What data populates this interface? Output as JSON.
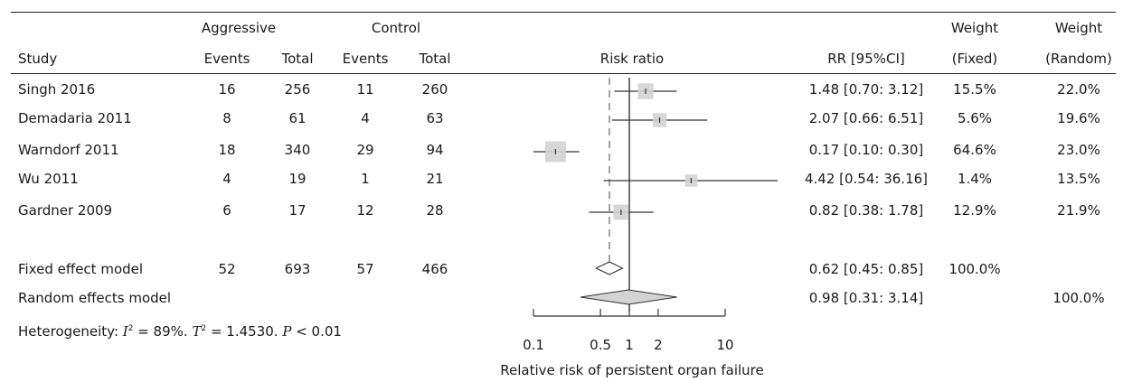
{
  "header": {
    "group1": "Aggressive",
    "group2": "Control",
    "col_study": "Study",
    "col_events1": "Events",
    "col_total1": "Total",
    "col_events2": "Events",
    "col_total2": "Total",
    "col_plot": "Risk ratio",
    "col_rr": "RR [95%CI]",
    "col_weight_top1": "Weight",
    "col_weight_top2": "Weight",
    "col_weight_fixed": "(Fixed)",
    "col_weight_random": "(Random)"
  },
  "studies": [
    {
      "name": "Singh 2016",
      "e1": "16",
      "t1": "256",
      "e2": "11",
      "t2": "260",
      "rr_text": "1.48 [0.70: 3.12]",
      "wf": "15.5%",
      "wr": "22.0%"
    },
    {
      "name": "Demadaria 2011",
      "e1": "8",
      "t1": "61",
      "e2": "4",
      "t2": "63",
      "rr_text": "2.07 [0.66: 6.51]",
      "wf": "5.6%",
      "wr": "19.6%"
    },
    {
      "name": "Warndorf 2011",
      "e1": "18",
      "t1": "340",
      "e2": "29",
      "t2": "94",
      "rr_text": "0.17 [0.10: 0.30]",
      "wf": "64.6%",
      "wr": "23.0%"
    },
    {
      "name": "Wu 2011",
      "e1": "4",
      "t1": "19",
      "e2": "1",
      "t2": "21",
      "rr_text": "4.42 [0.54: 36.16]",
      "wf": "1.4%",
      "wr": "13.5%"
    },
    {
      "name": "Gardner 2009",
      "e1": "6",
      "t1": "17",
      "e2": "12",
      "t2": "28",
      "rr_text": "0.82 [0.38: 1.78]",
      "wf": "12.9%",
      "wr": "21.9%"
    }
  ],
  "fixed": {
    "name": "Fixed effect model",
    "e1": "52",
    "t1": "693",
    "e2": "57",
    "t2": "466",
    "rr_text": "0.62 [0.45: 0.85]",
    "wf": "100.0%"
  },
  "random": {
    "name": "Random effects model",
    "rr_text": "0.98 [0.31: 3.14]",
    "wr": "100.0%"
  },
  "heterogeneity": {
    "prefix": "Heterogeneity: ",
    "I2_sym": "I",
    "I2_val": " = 89%. ",
    "tau2_sym": "T",
    "tau2_val": " = 1.4530. ",
    "p_sym": "P",
    "p_val": " < 0.01"
  },
  "chart_data": {
    "type": "forest",
    "xscale": "log",
    "xlabel": "Relative risk of persistent organ failure",
    "xticks": [
      "0.1",
      "0.5",
      "1",
      "2",
      "10"
    ],
    "xlim": [
      0.1,
      10
    ],
    "reference_line": 1,
    "fixed_effect_dashed_line": 0.62,
    "studies": [
      {
        "name": "Singh 2016",
        "rr": 1.48,
        "lo": 0.7,
        "hi": 3.12,
        "weight_fixed": 15.5
      },
      {
        "name": "Demadaria 2011",
        "rr": 2.07,
        "lo": 0.66,
        "hi": 6.51,
        "weight_fixed": 5.6
      },
      {
        "name": "Warndorf 2011",
        "rr": 0.17,
        "lo": 0.1,
        "hi": 0.3,
        "weight_fixed": 64.6
      },
      {
        "name": "Wu 2011",
        "rr": 4.42,
        "lo": 0.54,
        "hi": 36.16,
        "weight_fixed": 1.4
      },
      {
        "name": "Gardner 2009",
        "rr": 0.82,
        "lo": 0.38,
        "hi": 1.78,
        "weight_fixed": 12.9
      }
    ],
    "pooled": [
      {
        "name": "Fixed effect model",
        "rr": 0.62,
        "lo": 0.45,
        "hi": 0.85
      },
      {
        "name": "Random effects model",
        "rr": 0.98,
        "lo": 0.31,
        "hi": 3.14
      }
    ],
    "colors": {
      "box": "#d3d3d3",
      "line": "#333333",
      "diamond_random": "#d3d3d3"
    }
  }
}
